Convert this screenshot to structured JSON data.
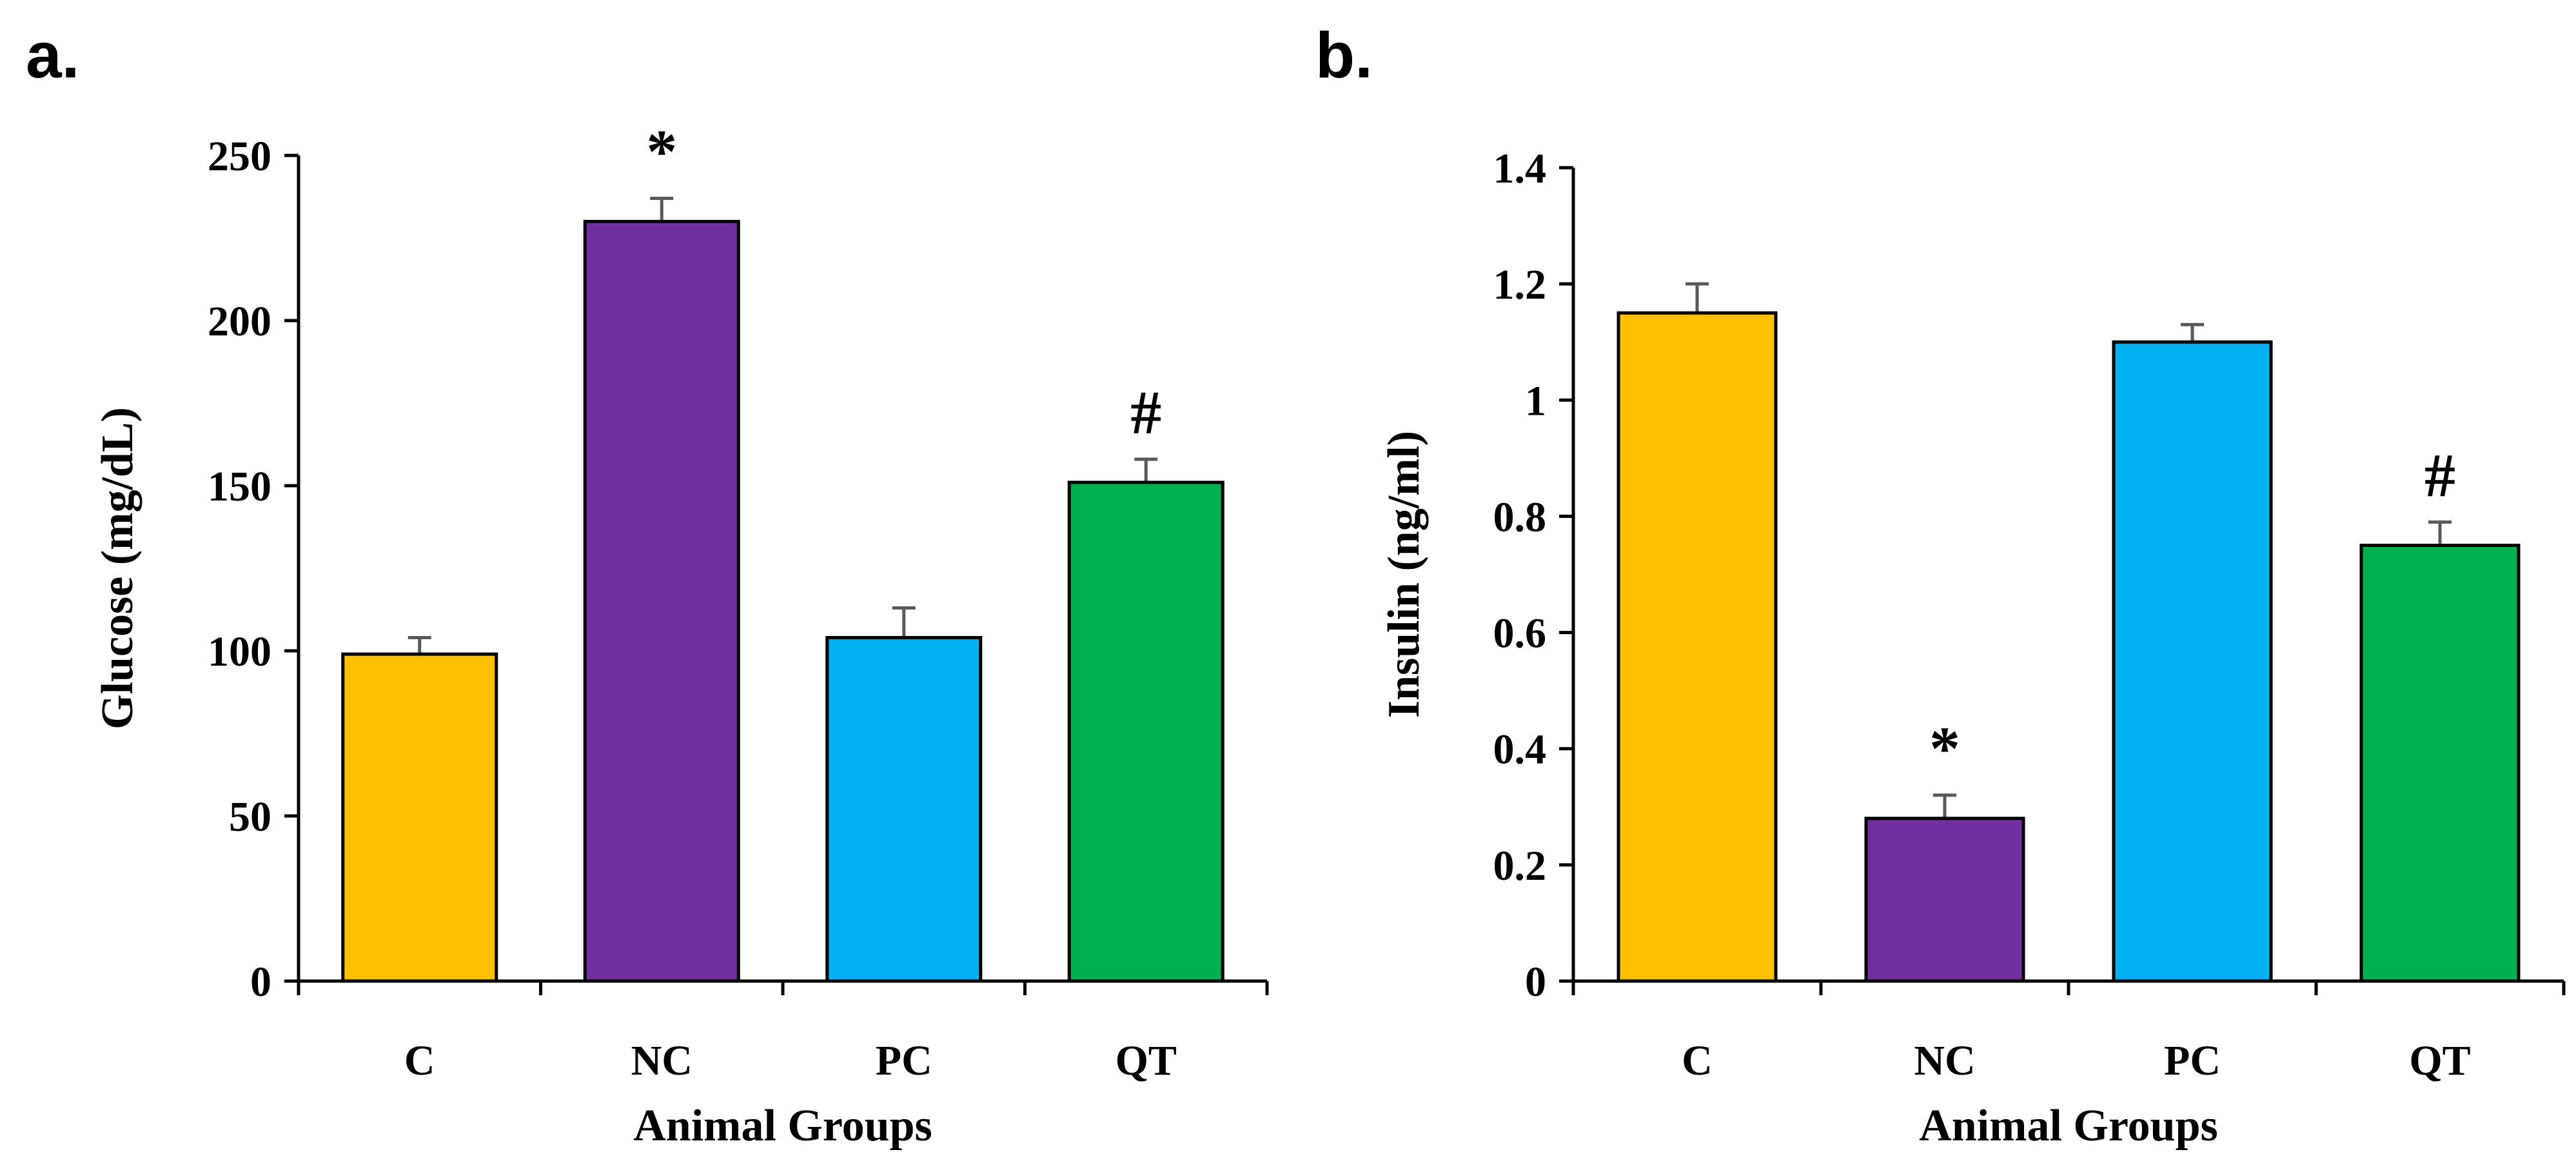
{
  "chart_data": [
    {
      "panel": "a.",
      "type": "bar",
      "categories": [
        "C",
        "NC",
        "PC",
        "QT"
      ],
      "values": [
        99,
        230,
        104,
        151
      ],
      "errors": [
        5,
        7,
        9,
        7
      ],
      "annotations": [
        "",
        "*",
        "",
        "#"
      ],
      "colors": [
        "#FFC000",
        "#7030A0",
        "#00B0F0",
        "#00B050"
      ],
      "xlabel": "Animal Groups",
      "ylabel": "Glucose (mg/dL)",
      "ylim": [
        0,
        250
      ],
      "yticks": [
        0,
        50,
        100,
        150,
        200,
        250
      ],
      "ytick_labels": [
        "0",
        "50",
        "100",
        "150",
        "200",
        "250"
      ],
      "grid": false,
      "legend": "none"
    },
    {
      "panel": "b.",
      "type": "bar",
      "categories": [
        "C",
        "NC",
        "PC",
        "QT"
      ],
      "values": [
        1.15,
        0.28,
        1.1,
        0.75
      ],
      "errors": [
        0.05,
        0.04,
        0.03,
        0.04
      ],
      "annotations": [
        "",
        "*",
        "",
        "#"
      ],
      "colors": [
        "#FFC000",
        "#7030A0",
        "#00B0F0",
        "#00B050"
      ],
      "xlabel": "Animal Groups",
      "ylabel": "Insulin (ng/ml)",
      "ylim": [
        0,
        1.4
      ],
      "yticks": [
        0,
        0.2,
        0.4,
        0.6,
        0.8,
        1.0,
        1.2,
        1.4
      ],
      "ytick_labels": [
        "0",
        "0.2",
        "0.4",
        "0.6",
        "0.8",
        "1",
        "1.2",
        "1.4"
      ],
      "grid": false,
      "legend": "none"
    }
  ]
}
